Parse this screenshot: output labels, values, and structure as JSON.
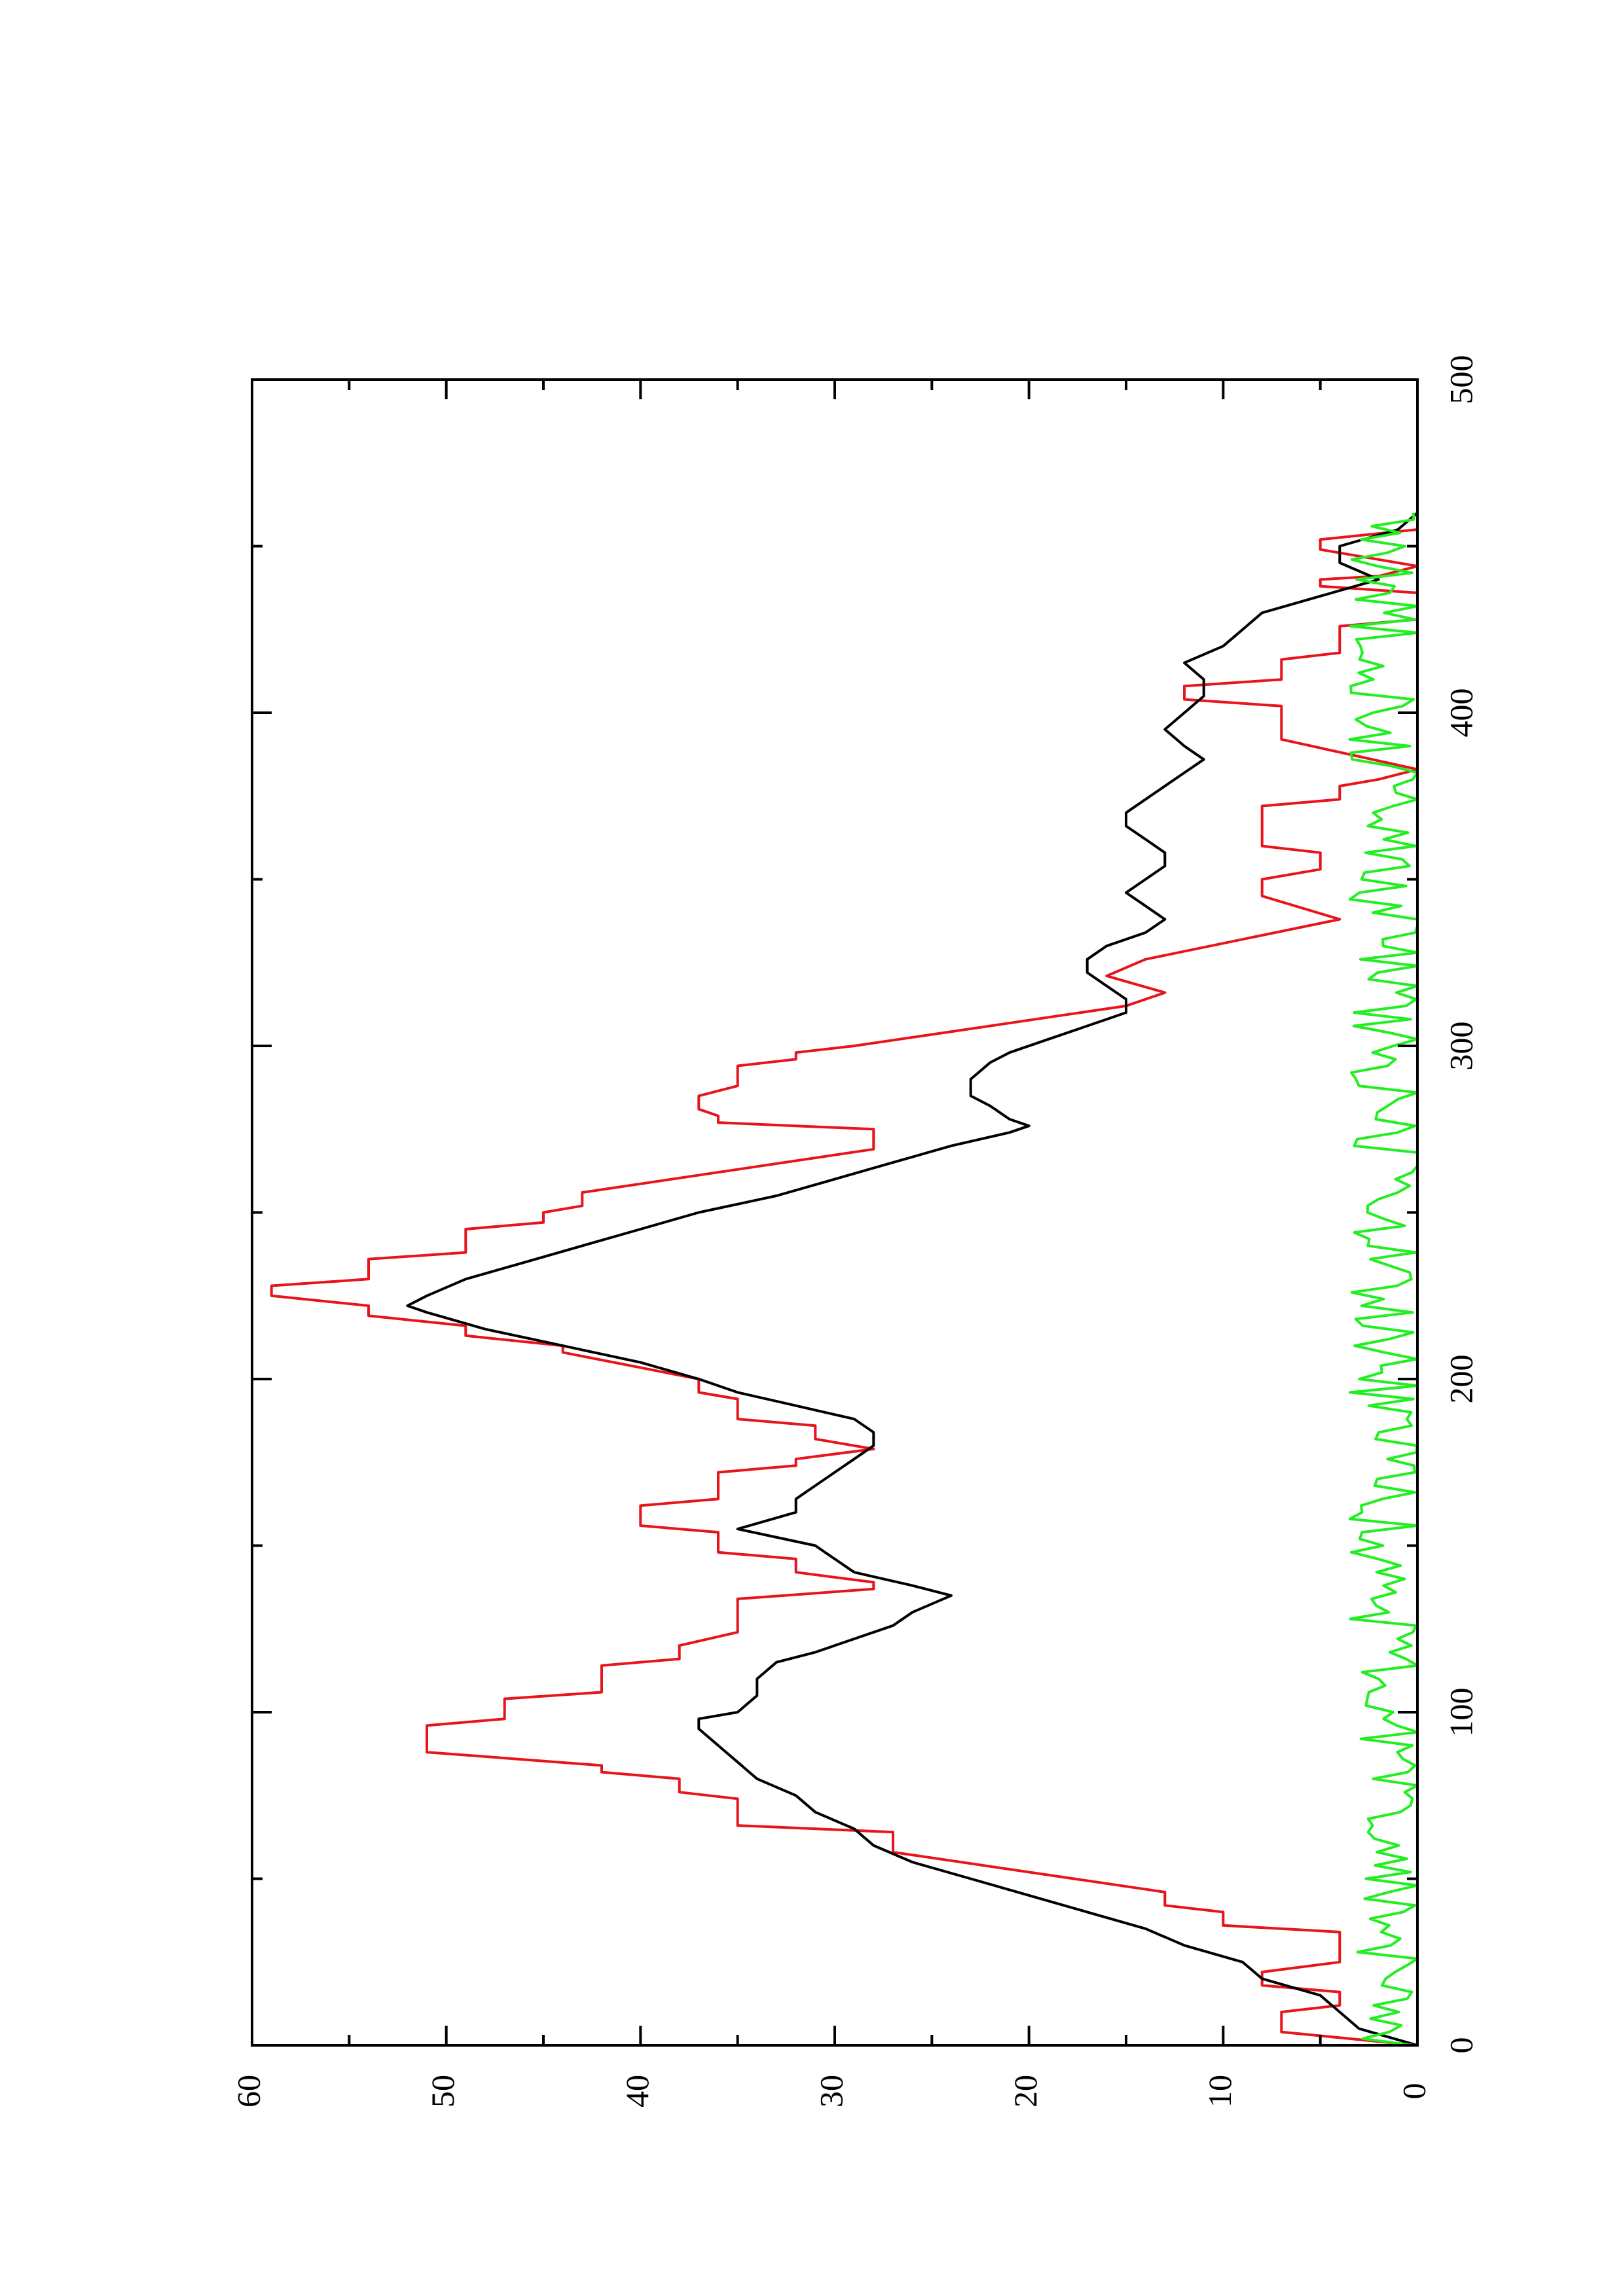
{
  "chart_data": {
    "type": "line",
    "title": "",
    "xlabel": "",
    "ylabel": "",
    "orientation": "rotated 90° counter-clockwise",
    "xlim": [
      0,
      500
    ],
    "ylim": [
      0,
      60
    ],
    "x_ticks": [
      0,
      100,
      200,
      300,
      400,
      500
    ],
    "x_tick_labels": [
      "0",
      "100",
      "200",
      "300",
      "400",
      "500"
    ],
    "x_minor_ticks": [
      50,
      150,
      250,
      350,
      450
    ],
    "y_ticks": [
      0,
      10,
      20,
      30,
      40,
      50,
      60
    ],
    "y_tick_labels": [
      "0",
      "10",
      "20",
      "30",
      "40",
      "50",
      "60"
    ],
    "y_minor_ticks": [
      5,
      15,
      25,
      35,
      45,
      55
    ],
    "grid": false,
    "legend": "none",
    "series": [
      {
        "color": "#e8141c",
        "style": "step-ramp",
        "points": [
          [
            0,
            0
          ],
          [
            4,
            7
          ],
          [
            10,
            7
          ],
          [
            12,
            4
          ],
          [
            16,
            4
          ],
          [
            18,
            8
          ],
          [
            22,
            8
          ],
          [
            25,
            4
          ],
          [
            34,
            4
          ],
          [
            36,
            10
          ],
          [
            40,
            10
          ],
          [
            42,
            13
          ],
          [
            46,
            13
          ],
          [
            58,
            27
          ],
          [
            64,
            27
          ],
          [
            66,
            35
          ],
          [
            74,
            35
          ],
          [
            76,
            38
          ],
          [
            80,
            38
          ],
          [
            82,
            42
          ],
          [
            84,
            42
          ],
          [
            88,
            51
          ],
          [
            96,
            51
          ],
          [
            98,
            47
          ],
          [
            104,
            47
          ],
          [
            106,
            42
          ],
          [
            114,
            42
          ],
          [
            116,
            38
          ],
          [
            120,
            38
          ],
          [
            124,
            35
          ],
          [
            134,
            35
          ],
          [
            137,
            28
          ],
          [
            139,
            28
          ],
          [
            142,
            32
          ],
          [
            146,
            32
          ],
          [
            148,
            36
          ],
          [
            154,
            36
          ],
          [
            156,
            40
          ],
          [
            162,
            40
          ],
          [
            164,
            36
          ],
          [
            172,
            36
          ],
          [
            174,
            32
          ],
          [
            176,
            32
          ],
          [
            179,
            28
          ],
          [
            182,
            31
          ],
          [
            186,
            31
          ],
          [
            188,
            35
          ],
          [
            194,
            35
          ],
          [
            196,
            37
          ],
          [
            200,
            37
          ],
          [
            208,
            44
          ],
          [
            210,
            44
          ],
          [
            213,
            49
          ],
          [
            216,
            49
          ],
          [
            219,
            54
          ],
          [
            222,
            54
          ],
          [
            225,
            59
          ],
          [
            228,
            59
          ],
          [
            230,
            54
          ],
          [
            236,
            54
          ],
          [
            238,
            49
          ],
          [
            245,
            49
          ],
          [
            247,
            45
          ],
          [
            250,
            45
          ],
          [
            252,
            43
          ],
          [
            256,
            43
          ],
          [
            269,
            28
          ],
          [
            275,
            28
          ],
          [
            277,
            36
          ],
          [
            279,
            36
          ],
          [
            281,
            37
          ],
          [
            285,
            37
          ],
          [
            288,
            35
          ],
          [
            294,
            35
          ],
          [
            296,
            32
          ],
          [
            298,
            32
          ],
          [
            300,
            29
          ],
          [
            312,
            15
          ],
          [
            316,
            13
          ],
          [
            321,
            16
          ],
          [
            326,
            14
          ],
          [
            338,
            4
          ],
          [
            345,
            8
          ],
          [
            350,
            8
          ],
          [
            353,
            5
          ],
          [
            358,
            5
          ],
          [
            360,
            8
          ],
          [
            372,
            8
          ],
          [
            374,
            4
          ],
          [
            378,
            4
          ],
          [
            380,
            2
          ],
          [
            383,
            0
          ],
          [
            392,
            7
          ],
          [
            402,
            7
          ],
          [
            404,
            12
          ],
          [
            408,
            12
          ],
          [
            410,
            7
          ],
          [
            416,
            7
          ],
          [
            418,
            4
          ],
          [
            426,
            4
          ],
          [
            428,
            0
          ],
          [
            436,
            0
          ],
          [
            438,
            5
          ],
          [
            440,
            5
          ],
          [
            441,
            2
          ],
          [
            444,
            0
          ],
          [
            449,
            5
          ],
          [
            452,
            5
          ],
          [
            455,
            0
          ],
          [
            460,
            0
          ]
        ]
      },
      {
        "color": "#000000",
        "style": "line",
        "points": [
          [
            0,
            0
          ],
          [
            5,
            3
          ],
          [
            10,
            4
          ],
          [
            15,
            5
          ],
          [
            20,
            8
          ],
          [
            25,
            9
          ],
          [
            30,
            12
          ],
          [
            35,
            14
          ],
          [
            40,
            17
          ],
          [
            45,
            20
          ],
          [
            50,
            23
          ],
          [
            55,
            26
          ],
          [
            60,
            28
          ],
          [
            65,
            29
          ],
          [
            70,
            31
          ],
          [
            75,
            32
          ],
          [
            80,
            34
          ],
          [
            85,
            35
          ],
          [
            90,
            36
          ],
          [
            95,
            37
          ],
          [
            98,
            37
          ],
          [
            100,
            35
          ],
          [
            105,
            34
          ],
          [
            110,
            34
          ],
          [
            115,
            33
          ],
          [
            118,
            31
          ],
          [
            122,
            29
          ],
          [
            126,
            27
          ],
          [
            130,
            26
          ],
          [
            135,
            24
          ],
          [
            138,
            26
          ],
          [
            142,
            29
          ],
          [
            146,
            30
          ],
          [
            150,
            31
          ],
          [
            155,
            35
          ],
          [
            160,
            32
          ],
          [
            164,
            32
          ],
          [
            168,
            31
          ],
          [
            172,
            30
          ],
          [
            176,
            29
          ],
          [
            180,
            28
          ],
          [
            184,
            28
          ],
          [
            188,
            29
          ],
          [
            192,
            32
          ],
          [
            196,
            35
          ],
          [
            200,
            37
          ],
          [
            205,
            40
          ],
          [
            210,
            44
          ],
          [
            215,
            48
          ],
          [
            220,
            51
          ],
          [
            222,
            52
          ],
          [
            225,
            51
          ],
          [
            230,
            49
          ],
          [
            235,
            46
          ],
          [
            240,
            43
          ],
          [
            245,
            40
          ],
          [
            250,
            37
          ],
          [
            255,
            33
          ],
          [
            260,
            30
          ],
          [
            265,
            27
          ],
          [
            270,
            24
          ],
          [
            274,
            21
          ],
          [
            276,
            20
          ],
          [
            278,
            21
          ],
          [
            282,
            22
          ],
          [
            285,
            23
          ],
          [
            290,
            23
          ],
          [
            295,
            22
          ],
          [
            298,
            21
          ],
          [
            302,
            19
          ],
          [
            306,
            17
          ],
          [
            310,
            15
          ],
          [
            314,
            15
          ],
          [
            318,
            16
          ],
          [
            322,
            17
          ],
          [
            326,
            17
          ],
          [
            330,
            16
          ],
          [
            334,
            14
          ],
          [
            338,
            13
          ],
          [
            342,
            14
          ],
          [
            346,
            15
          ],
          [
            350,
            14
          ],
          [
            354,
            13
          ],
          [
            358,
            13
          ],
          [
            362,
            14
          ],
          [
            366,
            15
          ],
          [
            370,
            15
          ],
          [
            374,
            14
          ],
          [
            378,
            13
          ],
          [
            382,
            12
          ],
          [
            386,
            11
          ],
          [
            390,
            12
          ],
          [
            395,
            13
          ],
          [
            400,
            12
          ],
          [
            405,
            11
          ],
          [
            410,
            11
          ],
          [
            415,
            12
          ],
          [
            420,
            10
          ],
          [
            425,
            9
          ],
          [
            430,
            8
          ],
          [
            435,
            5
          ],
          [
            440,
            2
          ],
          [
            445,
            4
          ],
          [
            450,
            4
          ],
          [
            455,
            1
          ],
          [
            460,
            0
          ]
        ]
      },
      {
        "color": "#22ee22",
        "style": "noisy-line",
        "seed": 17,
        "x_range": [
          0,
          460
        ],
        "x_step": 2,
        "y_min": 0,
        "y_max": 3.5,
        "y_mean": 1.6
      }
    ]
  }
}
